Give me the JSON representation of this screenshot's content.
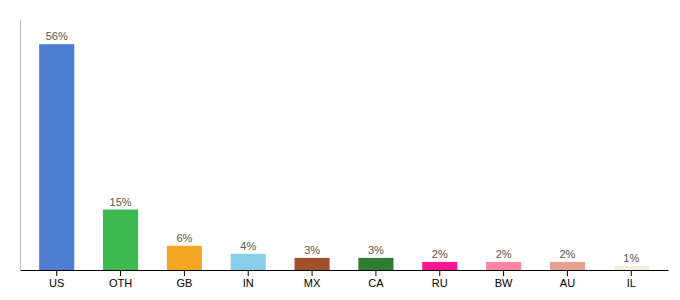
{
  "chart_data": {
    "type": "bar",
    "categories": [
      "US",
      "OTH",
      "GB",
      "IN",
      "MX",
      "CA",
      "RU",
      "BW",
      "AU",
      "IL"
    ],
    "values": [
      56,
      15,
      6,
      4,
      3,
      3,
      2,
      2,
      2,
      1
    ],
    "value_labels": [
      "56%",
      "15%",
      "6%",
      "4%",
      "3%",
      "3%",
      "2%",
      "2%",
      "2%",
      "1%"
    ],
    "colors": [
      "#4d7ed4",
      "#3dba4e",
      "#f5a623",
      "#87ceeb",
      "#a0522d",
      "#2e7d32",
      "#ff1493",
      "#ff85a2",
      "#e8a090",
      "#f5f0dc"
    ],
    "ylim": [
      0,
      62
    ],
    "data_labels": true,
    "tick_labels": "x"
  }
}
